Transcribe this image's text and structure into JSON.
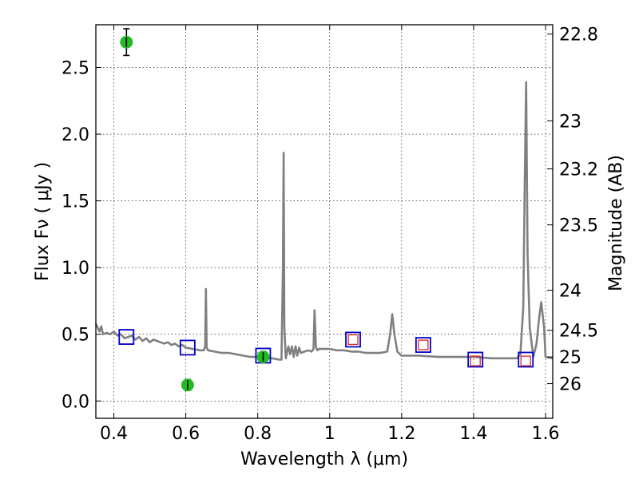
{
  "chart_data": {
    "type": "scatter",
    "xlabel": "Wavelength  λ (μm)",
    "ylabel": "Flux  Fν  ( μJy )",
    "ylabel_right": "Magnitude (AB)",
    "xlim": [
      0.35,
      1.62
    ],
    "ylim": [
      -0.13,
      2.82
    ],
    "grid": true,
    "x_ticks": [
      0.4,
      0.6,
      0.8,
      1.0,
      1.2,
      1.4,
      1.6
    ],
    "x_tick_labels": [
      "0.4",
      "0.6",
      "0.8",
      "1",
      "1.2",
      "1.4",
      "1.6"
    ],
    "y_ticks": [
      0.0,
      0.5,
      1.0,
      1.5,
      2.0,
      2.5
    ],
    "y_tick_labels": [
      "0.0",
      "0.5",
      "1.0",
      "1.5",
      "2.0",
      "2.5"
    ],
    "right_ticks": [
      {
        "label": "22.8",
        "flux": 2.75
      },
      {
        "label": "23",
        "flux": 2.1
      },
      {
        "label": "23.2",
        "flux": 1.74
      },
      {
        "label": "23.5",
        "flux": 1.32
      },
      {
        "label": "24",
        "flux": 0.83
      },
      {
        "label": "24.5",
        "flux": 0.53
      },
      {
        "label": "25",
        "flux": 0.33
      },
      {
        "label": "26",
        "flux": 0.13
      }
    ],
    "colors": {
      "model": "#808080",
      "detections": "#22bb22",
      "model_photometry": "#0000cc",
      "observed_upper": "#dd2222"
    },
    "series": [
      {
        "kind": "line",
        "x": [
          0.35,
          0.355,
          0.36,
          0.365,
          0.37,
          0.38,
          0.39,
          0.4,
          0.41,
          0.42,
          0.43,
          0.44,
          0.45,
          0.46,
          0.47,
          0.48,
          0.49,
          0.5,
          0.51,
          0.52,
          0.53,
          0.54,
          0.55,
          0.56,
          0.57,
          0.58,
          0.59,
          0.6,
          0.62,
          0.64,
          0.65,
          0.654,
          0.656,
          0.658,
          0.662,
          0.68,
          0.7,
          0.72,
          0.74,
          0.76,
          0.78,
          0.8,
          0.82,
          0.84,
          0.86,
          0.866,
          0.87,
          0.872,
          0.874,
          0.878,
          0.885,
          0.89,
          0.895,
          0.9,
          0.905,
          0.91,
          0.915,
          0.92,
          0.93,
          0.94,
          0.95,
          0.955,
          0.958,
          0.962,
          0.966,
          0.97,
          0.98,
          1.0,
          1.02,
          1.04,
          1.06,
          1.08,
          1.1,
          1.12,
          1.14,
          1.16,
          1.168,
          1.174,
          1.18,
          1.188,
          1.2,
          1.25,
          1.3,
          1.35,
          1.4,
          1.45,
          1.5,
          1.52,
          1.53,
          1.538,
          1.542,
          1.546,
          1.55,
          1.556,
          1.566,
          1.575,
          1.582,
          1.588,
          1.596,
          1.6,
          1.62
        ],
        "y": [
          0.58,
          0.55,
          0.52,
          0.56,
          0.5,
          0.51,
          0.5,
          0.52,
          0.49,
          0.5,
          0.47,
          0.48,
          0.49,
          0.46,
          0.48,
          0.45,
          0.47,
          0.44,
          0.46,
          0.45,
          0.44,
          0.43,
          0.44,
          0.42,
          0.43,
          0.41,
          0.42,
          0.4,
          0.39,
          0.38,
          0.38,
          0.41,
          0.84,
          0.4,
          0.38,
          0.37,
          0.36,
          0.36,
          0.35,
          0.34,
          0.33,
          0.33,
          0.32,
          0.32,
          0.31,
          0.31,
          1.0,
          1.86,
          0.55,
          0.32,
          0.41,
          0.35,
          0.41,
          0.33,
          0.41,
          0.34,
          0.4,
          0.36,
          0.37,
          0.38,
          0.37,
          0.39,
          0.68,
          0.4,
          0.38,
          0.39,
          0.39,
          0.39,
          0.38,
          0.38,
          0.37,
          0.37,
          0.36,
          0.36,
          0.36,
          0.37,
          0.5,
          0.65,
          0.5,
          0.37,
          0.34,
          0.34,
          0.33,
          0.33,
          0.33,
          0.32,
          0.32,
          0.32,
          0.35,
          0.7,
          1.6,
          2.39,
          1.1,
          0.55,
          0.33,
          0.43,
          0.62,
          0.74,
          0.55,
          0.33,
          0.32
        ]
      },
      {
        "kind": "points_with_errors",
        "points": [
          {
            "x": 0.435,
            "y": 2.69,
            "err": 0.1
          },
          {
            "x": 0.605,
            "y": 0.12,
            "err": 0.04
          },
          {
            "x": 0.815,
            "y": 0.33,
            "err": 0.04
          }
        ]
      },
      {
        "kind": "model_photometry",
        "x": [
          0.435,
          0.605,
          0.815,
          1.065,
          1.26,
          1.405,
          1.545
        ],
        "y": [
          0.48,
          0.4,
          0.34,
          0.46,
          0.42,
          0.31,
          0.31
        ]
      },
      {
        "kind": "observed_photometry",
        "x": [
          1.065,
          1.26,
          1.405,
          1.545
        ],
        "y": [
          0.46,
          0.42,
          0.3,
          0.3
        ]
      }
    ]
  }
}
